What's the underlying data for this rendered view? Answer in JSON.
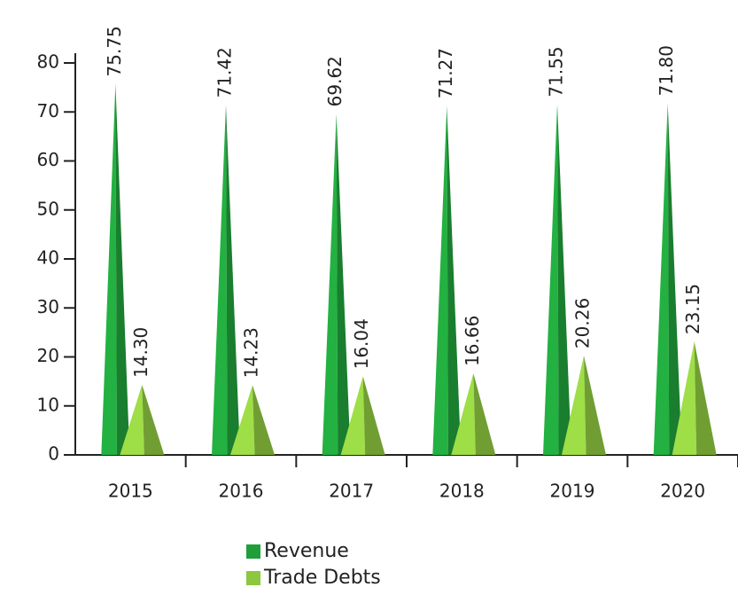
{
  "chart_data": {
    "type": "bar",
    "categories": [
      "2015",
      "2016",
      "2017",
      "2018",
      "2019",
      "2020"
    ],
    "series": [
      {
        "name": "Revenue",
        "color": "#1f9e3a",
        "values": [
          75.75,
          71.42,
          69.62,
          71.27,
          71.55,
          71.8
        ],
        "value_labels": [
          "75.75",
          "71.42",
          "69.62",
          "71.27",
          "71.55",
          "71.80"
        ]
      },
      {
        "name": "Trade Debts",
        "color": "#8dc63f",
        "values": [
          14.3,
          14.23,
          16.04,
          16.66,
          20.26,
          23.15
        ],
        "value_labels": [
          "14.30",
          "14.23",
          "16.04",
          "16.66",
          "20.26",
          "23.15"
        ]
      }
    ],
    "ylim": [
      0,
      80
    ],
    "yticks": [
      0,
      10,
      20,
      30,
      40,
      50,
      60,
      70,
      80
    ]
  }
}
